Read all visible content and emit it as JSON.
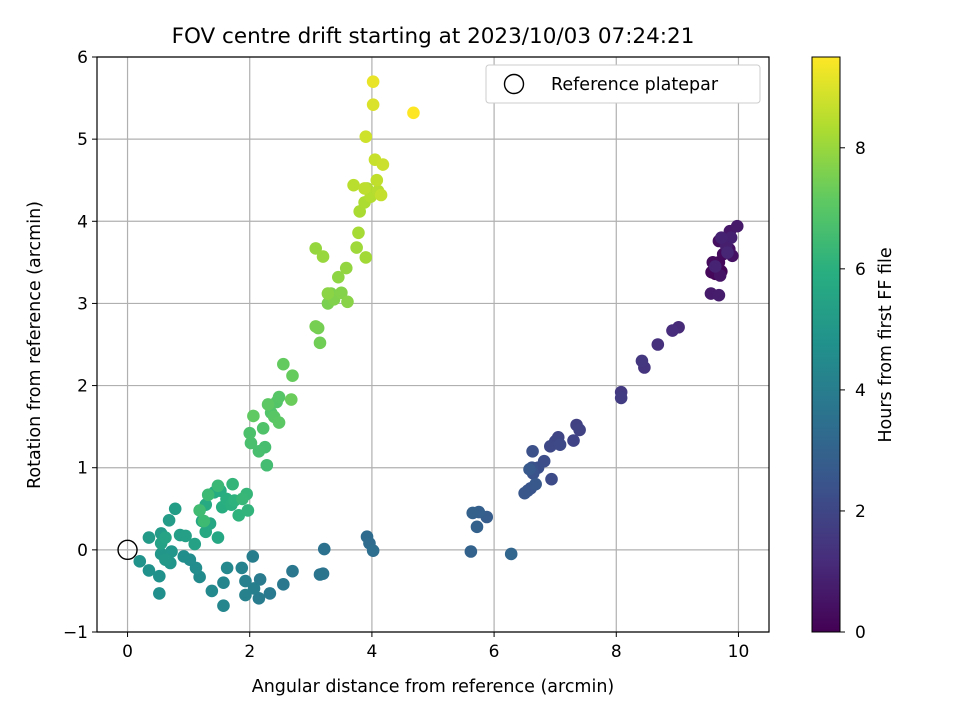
{
  "chart_data": {
    "type": "scatter",
    "title": "FOV centre drift starting at 2023/10/03 07:24:21",
    "xlabel": "Angular distance from reference (arcmin)",
    "ylabel": "Rotation from reference (arcmin)",
    "xlim": [
      -0.5,
      10.5
    ],
    "ylim": [
      -1,
      6
    ],
    "xticks": [
      0,
      2,
      4,
      6,
      8,
      10
    ],
    "yticks": [
      -1,
      0,
      1,
      2,
      3,
      4,
      5,
      6
    ],
    "grid": true,
    "legend": {
      "placement": "top-right",
      "entries": [
        "Reference platepar"
      ]
    },
    "reference_point": {
      "x": 0,
      "y": 0
    },
    "colorbar": {
      "label": "Hours from first FF file",
      "colormap": "viridis",
      "range": [
        0,
        9.5
      ],
      "ticks": [
        0,
        2,
        4,
        6,
        8
      ]
    },
    "points": [
      [
        9.62,
        3.36,
        0.05
      ],
      [
        9.72,
        3.39,
        0.1
      ],
      [
        9.56,
        3.38,
        0.15
      ],
      [
        9.68,
        3.5,
        0.2
      ],
      [
        9.75,
        3.6,
        0.25
      ],
      [
        9.58,
        3.5,
        0.3
      ],
      [
        9.68,
        3.76,
        0.35
      ],
      [
        9.85,
        3.66,
        0.4
      ],
      [
        9.9,
        3.58,
        0.45
      ],
      [
        9.7,
        3.34,
        0.5
      ],
      [
        9.78,
        3.75,
        0.55
      ],
      [
        9.86,
        3.88,
        0.6
      ],
      [
        9.98,
        3.94,
        0.65
      ],
      [
        9.55,
        3.12,
        0.7
      ],
      [
        9.68,
        3.1,
        0.75
      ],
      [
        9.8,
        3.7,
        0.8
      ],
      [
        9.88,
        3.8,
        0.85
      ],
      [
        9.72,
        3.8,
        0.9
      ],
      [
        9.62,
        3.45,
        0.95
      ],
      [
        9.82,
        3.62,
        1.0
      ],
      [
        9.02,
        2.71,
        1.1
      ],
      [
        8.92,
        2.67,
        1.2
      ],
      [
        8.68,
        2.5,
        1.3
      ],
      [
        8.46,
        2.22,
        1.4
      ],
      [
        8.42,
        2.3,
        1.5
      ],
      [
        8.08,
        1.92,
        1.6
      ],
      [
        8.08,
        1.85,
        1.7
      ],
      [
        7.35,
        1.52,
        1.8
      ],
      [
        7.4,
        1.46,
        1.85
      ],
      [
        7.3,
        1.33,
        1.9
      ],
      [
        7.05,
        1.37,
        1.95
      ],
      [
        7.0,
        1.32,
        2.0
      ],
      [
        6.92,
        1.26,
        2.05
      ],
      [
        7.08,
        1.28,
        2.1
      ],
      [
        6.94,
        0.86,
        2.15
      ],
      [
        6.82,
        1.08,
        2.2
      ],
      [
        6.72,
        1.0,
        2.25
      ],
      [
        6.63,
        1.2,
        2.3
      ],
      [
        6.62,
        1.0,
        2.35
      ],
      [
        6.64,
        0.93,
        2.4
      ],
      [
        6.6,
        0.75,
        2.45
      ],
      [
        6.55,
        0.72,
        2.5
      ],
      [
        6.5,
        0.69,
        2.55
      ],
      [
        6.68,
        0.8,
        2.6
      ],
      [
        6.58,
        0.98,
        2.65
      ],
      [
        5.88,
        0.4,
        2.8
      ],
      [
        5.75,
        0.46,
        2.85
      ],
      [
        5.65,
        0.45,
        2.9
      ],
      [
        5.72,
        0.28,
        2.95
      ],
      [
        5.62,
        -0.02,
        3.0
      ],
      [
        6.28,
        -0.05,
        3.1
      ],
      [
        3.92,
        0.16,
        3.3
      ],
      [
        3.96,
        0.08,
        3.35
      ],
      [
        4.02,
        -0.01,
        3.4
      ],
      [
        3.22,
        0.01,
        3.55
      ],
      [
        3.2,
        -0.29,
        3.6
      ],
      [
        3.15,
        -0.3,
        3.65
      ],
      [
        2.7,
        -0.26,
        3.75
      ],
      [
        2.55,
        -0.42,
        3.8
      ],
      [
        2.33,
        -0.53,
        3.85
      ],
      [
        2.17,
        -0.36,
        3.9
      ],
      [
        2.15,
        -0.59,
        3.95
      ],
      [
        2.05,
        -0.08,
        4.0
      ],
      [
        2.07,
        -0.47,
        4.05
      ],
      [
        1.93,
        -0.38,
        4.1
      ],
      [
        1.93,
        -0.55,
        4.15
      ],
      [
        1.87,
        -0.22,
        4.2
      ],
      [
        1.57,
        -0.4,
        4.3
      ],
      [
        1.57,
        -0.68,
        4.35
      ],
      [
        1.63,
        -0.22,
        4.4
      ],
      [
        1.38,
        -0.5,
        4.45
      ],
      [
        1.18,
        -0.33,
        4.5
      ],
      [
        1.12,
        -0.22,
        4.55
      ],
      [
        1.02,
        -0.12,
        4.6
      ],
      [
        0.92,
        -0.08,
        4.65
      ],
      [
        0.52,
        -0.53,
        4.7
      ],
      [
        0.52,
        -0.32,
        4.75
      ],
      [
        0.35,
        -0.25,
        4.8
      ],
      [
        0.2,
        -0.14,
        4.85
      ],
      [
        0.7,
        -0.16,
        4.9
      ],
      [
        0.72,
        -0.02,
        4.95
      ],
      [
        0.55,
        -0.05,
        5.0
      ],
      [
        0.62,
        -0.12,
        5.05
      ],
      [
        0.35,
        0.15,
        5.1
      ],
      [
        0.55,
        0.2,
        5.15
      ],
      [
        0.68,
        0.36,
        5.2
      ],
      [
        0.78,
        0.5,
        5.25
      ],
      [
        0.86,
        0.18,
        5.3
      ],
      [
        0.95,
        0.17,
        5.35
      ],
      [
        1.1,
        0.07,
        5.4
      ],
      [
        0.55,
        0.08,
        5.45
      ],
      [
        0.62,
        0.15,
        5.5
      ],
      [
        1.22,
        0.35,
        5.55
      ],
      [
        1.35,
        0.32,
        5.6
      ],
      [
        1.48,
        0.15,
        5.65
      ],
      [
        1.28,
        0.22,
        5.7
      ],
      [
        1.28,
        0.55,
        5.75
      ],
      [
        1.42,
        0.7,
        5.8
      ],
      [
        1.52,
        0.72,
        5.85
      ],
      [
        1.55,
        0.52,
        5.9
      ],
      [
        1.62,
        0.62,
        5.95
      ],
      [
        1.7,
        0.55,
        6.0
      ],
      [
        1.75,
        0.6,
        6.05
      ],
      [
        1.82,
        0.42,
        6.1
      ],
      [
        1.97,
        0.48,
        6.15
      ],
      [
        1.72,
        0.8,
        6.2
      ],
      [
        1.95,
        0.68,
        6.25
      ],
      [
        1.88,
        0.62,
        6.3
      ],
      [
        1.48,
        0.78,
        6.35
      ],
      [
        1.32,
        0.67,
        6.4
      ],
      [
        1.25,
        0.35,
        6.45
      ],
      [
        1.18,
        0.48,
        6.5
      ],
      [
        2.28,
        1.03,
        6.55
      ],
      [
        2.25,
        1.25,
        6.6
      ],
      [
        2.15,
        1.2,
        6.65
      ],
      [
        2.02,
        1.3,
        6.7
      ],
      [
        2.0,
        1.42,
        6.75
      ],
      [
        2.22,
        1.48,
        6.8
      ],
      [
        2.35,
        1.67,
        6.85
      ],
      [
        2.44,
        1.8,
        6.9
      ],
      [
        2.48,
        1.86,
        6.95
      ],
      [
        2.4,
        1.62,
        7.0
      ],
      [
        2.48,
        1.55,
        7.05
      ],
      [
        2.3,
        1.77,
        7.1
      ],
      [
        2.06,
        1.63,
        7.15
      ],
      [
        2.55,
        2.26,
        7.2
      ],
      [
        2.7,
        2.12,
        7.25
      ],
      [
        2.68,
        1.83,
        7.3
      ],
      [
        3.15,
        2.52,
        7.4
      ],
      [
        3.12,
        2.7,
        7.45
      ],
      [
        3.08,
        2.72,
        7.5
      ],
      [
        3.28,
        3.0,
        7.55
      ],
      [
        3.33,
        3.12,
        7.6
      ],
      [
        3.38,
        3.05,
        7.65
      ],
      [
        3.5,
        3.13,
        7.7
      ],
      [
        3.6,
        3.02,
        7.75
      ],
      [
        3.28,
        3.12,
        7.8
      ],
      [
        3.45,
        3.32,
        7.85
      ],
      [
        3.58,
        3.43,
        7.9
      ],
      [
        3.08,
        3.67,
        7.95
      ],
      [
        3.2,
        3.57,
        8.0
      ],
      [
        3.75,
        3.68,
        8.1
      ],
      [
        3.9,
        3.56,
        8.15
      ],
      [
        3.78,
        3.86,
        8.2
      ],
      [
        3.8,
        4.12,
        8.25
      ],
      [
        3.88,
        4.23,
        8.3
      ],
      [
        3.92,
        4.4,
        8.35
      ],
      [
        3.98,
        4.3,
        8.4
      ],
      [
        4.1,
        4.37,
        8.45
      ],
      [
        3.7,
        4.44,
        8.5
      ],
      [
        3.88,
        4.4,
        8.55
      ],
      [
        4.08,
        4.5,
        8.6
      ],
      [
        4.15,
        4.32,
        8.65
      ],
      [
        4.05,
        4.75,
        8.7
      ],
      [
        4.18,
        4.69,
        8.75
      ],
      [
        3.9,
        5.03,
        8.8
      ],
      [
        4.02,
        5.42,
        9.0
      ],
      [
        4.02,
        5.7,
        9.2
      ],
      [
        4.68,
        5.32,
        9.5
      ]
    ]
  }
}
